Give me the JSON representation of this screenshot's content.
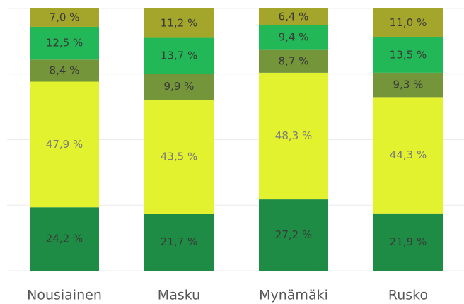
{
  "chart_data": {
    "type": "stacked-bar",
    "categories": [
      "Nousiainen",
      "Masku",
      "Mynämäki",
      "Rusko"
    ],
    "series": [
      {
        "color": "#1e8c45",
        "values": [
          24.2,
          21.7,
          27.2,
          21.9
        ],
        "value_labels": [
          "24,2 %",
          "21,7 %",
          "27,2 %",
          "21,9 %"
        ]
      },
      {
        "color": "#e3f22f",
        "values": [
          47.9,
          43.5,
          48.3,
          44.3
        ],
        "value_labels": [
          "47,9 %",
          "43,5 %",
          "48,3 %",
          "44,3 %"
        ]
      },
      {
        "color": "#75953a",
        "values": [
          8.4,
          9.9,
          8.7,
          9.3
        ],
        "value_labels": [
          "8,4 %",
          "9,9 %",
          "8,7 %",
          "9,3 %"
        ]
      },
      {
        "color": "#23b857",
        "values": [
          12.5,
          13.7,
          9.4,
          13.5
        ],
        "value_labels": [
          "12,5 %",
          "13,7 %",
          "9,4 %",
          "13,5 %"
        ]
      },
      {
        "color": "#a3a62a",
        "values": [
          7.0,
          11.2,
          6.4,
          11.0
        ],
        "value_labels": [
          "7,0 %",
          "11,2 %",
          "6,4 %",
          "11,0 %"
        ]
      }
    ],
    "ylim": [
      0,
      100
    ],
    "yticks": [
      0,
      25,
      50,
      75,
      100
    ],
    "grid": true
  }
}
